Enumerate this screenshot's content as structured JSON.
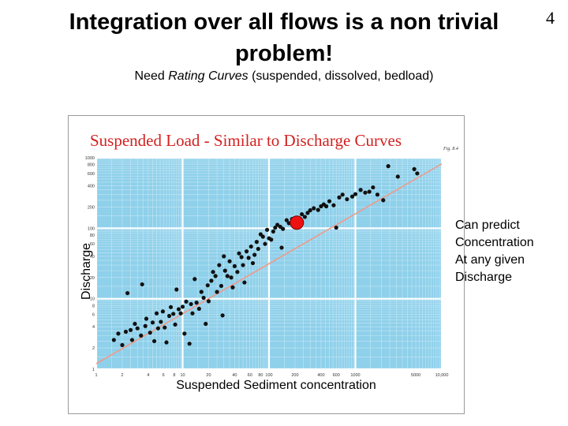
{
  "slide": {
    "number": "4",
    "title_line1": "Integration over all flows is a non trivial",
    "title_line2": "problem!",
    "subtitle_pre": "Need ",
    "subtitle_italic": "Rating Curves",
    "subtitle_post": " (suspended, dissolved, bedload)",
    "annotation": [
      "Can predict",
      "Concentration",
      "At any given",
      "Discharge"
    ]
  },
  "chart_data": {
    "type": "scatter",
    "title": "Suspended Load - Similar to Discharge Curves",
    "fig_tag": "Fig. 8.4",
    "xlabel": "Suspended Sediment concentration",
    "ylabel": "Discharge",
    "xscale": "log",
    "yscale": "log",
    "xlim": [
      1,
      10000
    ],
    "ylim": [
      1,
      1000
    ],
    "grid": true,
    "colors": {
      "background": "#8fd0ea",
      "grid_minor": "#c3e7f5",
      "grid_major": "#ffffff",
      "points": "#111111",
      "trend": "#f09a8a",
      "highlight": "#ee1111"
    },
    "x_ticks": [
      {
        "v": 1,
        "label": "1"
      },
      {
        "v": 2,
        "label": "2"
      },
      {
        "v": 4,
        "label": "4"
      },
      {
        "v": 6,
        "label": "6"
      },
      {
        "v": 8,
        "label": "8"
      },
      {
        "v": 10,
        "label": "10"
      },
      {
        "v": 20,
        "label": "20"
      },
      {
        "v": 40,
        "label": "40"
      },
      {
        "v": 60,
        "label": "60"
      },
      {
        "v": 80,
        "label": "80"
      },
      {
        "v": 100,
        "label": "100"
      },
      {
        "v": 200,
        "label": "200"
      },
      {
        "v": 400,
        "label": "400"
      },
      {
        "v": 600,
        "label": "600"
      },
      {
        "v": 1000,
        "label": "1000"
      },
      {
        "v": 5000,
        "label": "5000"
      },
      {
        "v": 10000,
        "label": "10,000"
      }
    ],
    "y_ticks": [
      {
        "v": 1,
        "label": "1"
      },
      {
        "v": 2,
        "label": "2"
      },
      {
        "v": 4,
        "label": "4"
      },
      {
        "v": 6,
        "label": "6"
      },
      {
        "v": 8,
        "label": "8"
      },
      {
        "v": 10,
        "label": "10"
      },
      {
        "v": 20,
        "label": "20"
      },
      {
        "v": 40,
        "label": "40"
      },
      {
        "v": 60,
        "label": "60"
      },
      {
        "v": 80,
        "label": "80"
      },
      {
        "v": 100,
        "label": "100"
      },
      {
        "v": 200,
        "label": "200"
      },
      {
        "v": 400,
        "label": "400"
      },
      {
        "v": 600,
        "label": "600"
      },
      {
        "v": 800,
        "label": "800"
      },
      {
        "v": 1000,
        "label": "1000"
      }
    ],
    "trend_line": [
      [
        1,
        1.2
      ],
      [
        10000,
        820
      ]
    ],
    "highlight_point": [
      210,
      120
    ],
    "points": [
      [
        1.6,
        2.6
      ],
      [
        1.8,
        3.2
      ],
      [
        2.0,
        2.2
      ],
      [
        2.2,
        3.4
      ],
      [
        2.3,
        12
      ],
      [
        2.5,
        3.6
      ],
      [
        2.6,
        2.6
      ],
      [
        2.8,
        4.4
      ],
      [
        3.0,
        3.8
      ],
      [
        3.3,
        3.0
      ],
      [
        3.4,
        16
      ],
      [
        3.7,
        4.1
      ],
      [
        3.8,
        5.2
      ],
      [
        4.2,
        3.3
      ],
      [
        4.5,
        4.6
      ],
      [
        4.7,
        2.5
      ],
      [
        5.0,
        6.2
      ],
      [
        5.2,
        3.8
      ],
      [
        5.6,
        4.7
      ],
      [
        5.9,
        6.6
      ],
      [
        6.2,
        3.9
      ],
      [
        6.5,
        2.4
      ],
      [
        7.0,
        5.7
      ],
      [
        7.3,
        7.6
      ],
      [
        7.8,
        6.1
      ],
      [
        8.2,
        4.3
      ],
      [
        8.5,
        13.5
      ],
      [
        9.0,
        7.1
      ],
      [
        9.5,
        6.2
      ],
      [
        10.0,
        7.7
      ],
      [
        10.5,
        3.2
      ],
      [
        11,
        9.1
      ],
      [
        12,
        2.3
      ],
      [
        12.5,
        8.4
      ],
      [
        13,
        6.2
      ],
      [
        13.8,
        19
      ],
      [
        14.5,
        8.8
      ],
      [
        15.5,
        7.2
      ],
      [
        16.5,
        12.5
      ],
      [
        17.5,
        10.3
      ],
      [
        18.5,
        4.4
      ],
      [
        19.5,
        15.5
      ],
      [
        20,
        9.2
      ],
      [
        21.5,
        18
      ],
      [
        22.5,
        24
      ],
      [
        24,
        21
      ],
      [
        25,
        12.5
      ],
      [
        26.5,
        30
      ],
      [
        28,
        15.2
      ],
      [
        29,
        5.8
      ],
      [
        30,
        40
      ],
      [
        31,
        25
      ],
      [
        33,
        21
      ],
      [
        35,
        34
      ],
      [
        36.5,
        20
      ],
      [
        38,
        14.5
      ],
      [
        40,
        29
      ],
      [
        43,
        24
      ],
      [
        45,
        44
      ],
      [
        48,
        39
      ],
      [
        50,
        30
      ],
      [
        52,
        17
      ],
      [
        55,
        47
      ],
      [
        58,
        38
      ],
      [
        62,
        55
      ],
      [
        65,
        32
      ],
      [
        68,
        42
      ],
      [
        72,
        64
      ],
      [
        75,
        51
      ],
      [
        80,
        82
      ],
      [
        85,
        76
      ],
      [
        90,
        60
      ],
      [
        95,
        95
      ],
      [
        100,
        72
      ],
      [
        106,
        69
      ],
      [
        112,
        90
      ],
      [
        118,
        102
      ],
      [
        125,
        112
      ],
      [
        135,
        105
      ],
      [
        140,
        53
      ],
      [
        145,
        98
      ],
      [
        160,
        130
      ],
      [
        170,
        118
      ],
      [
        185,
        135
      ],
      [
        195,
        125
      ],
      [
        220,
        135
      ],
      [
        240,
        158
      ],
      [
        260,
        145
      ],
      [
        280,
        165
      ],
      [
        300,
        180
      ],
      [
        330,
        192
      ],
      [
        370,
        182
      ],
      [
        400,
        205
      ],
      [
        430,
        218
      ],
      [
        460,
        205
      ],
      [
        500,
        242
      ],
      [
        560,
        212
      ],
      [
        600,
        102
      ],
      [
        650,
        274
      ],
      [
        710,
        300
      ],
      [
        800,
        258
      ],
      [
        920,
        282
      ],
      [
        1000,
        305
      ],
      [
        1150,
        350
      ],
      [
        1300,
        320
      ],
      [
        1450,
        330
      ],
      [
        1600,
        380
      ],
      [
        1800,
        300
      ],
      [
        2100,
        250
      ],
      [
        2400,
        760
      ],
      [
        3100,
        540
      ],
      [
        4800,
        690
      ],
      [
        5200,
        600
      ]
    ]
  }
}
